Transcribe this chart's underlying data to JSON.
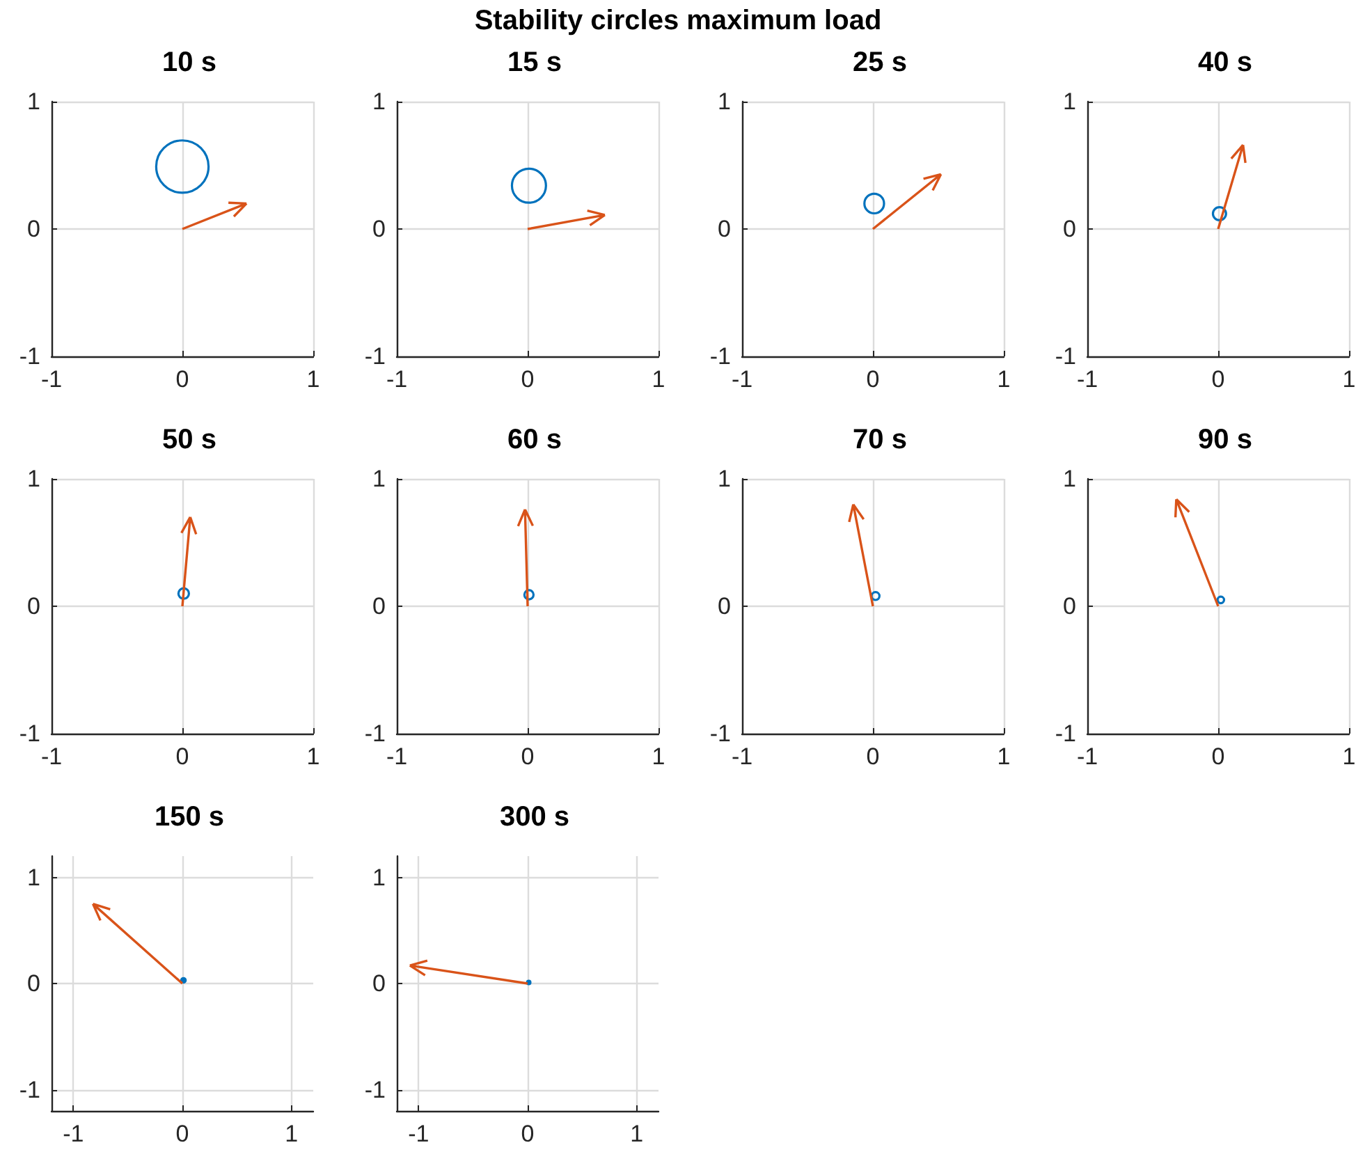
{
  "chart_data": [
    {
      "type": "other",
      "title": "Stability circles maximum load"
    },
    {
      "type": "line",
      "title": "10 s",
      "xlim": [
        -1,
        1
      ],
      "ylim": [
        -1,
        1
      ],
      "xticks": [
        -1,
        0,
        1
      ],
      "yticks": [
        -1,
        0,
        1
      ],
      "grid": true
    },
    {
      "type": "line",
      "title": "15 s",
      "xlim": [
        -1,
        1
      ],
      "ylim": [
        -1,
        1
      ],
      "xticks": [
        -1,
        0,
        1
      ],
      "yticks": [
        -1,
        0,
        1
      ],
      "grid": true
    },
    {
      "type": "line",
      "title": "25 s",
      "xlim": [
        -1,
        1
      ],
      "ylim": [
        -1,
        1
      ],
      "xticks": [
        -1,
        0,
        1
      ],
      "yticks": [
        -1,
        0,
        1
      ],
      "grid": true
    },
    {
      "type": "line",
      "title": "40 s",
      "xlim": [
        -1,
        1
      ],
      "ylim": [
        -1,
        1
      ],
      "xticks": [
        -1,
        0,
        1
      ],
      "yticks": [
        -1,
        0,
        1
      ],
      "grid": true
    },
    {
      "type": "line",
      "title": "50 s",
      "xlim": [
        -1,
        1
      ],
      "ylim": [
        -1,
        1
      ],
      "xticks": [
        -1,
        0,
        1
      ],
      "yticks": [
        -1,
        0,
        1
      ],
      "grid": true
    },
    {
      "type": "line",
      "title": "60 s",
      "xlim": [
        -1,
        1
      ],
      "ylim": [
        -1,
        1
      ],
      "xticks": [
        -1,
        0,
        1
      ],
      "yticks": [
        -1,
        0,
        1
      ],
      "grid": true
    },
    {
      "type": "line",
      "title": "70 s",
      "xlim": [
        -1,
        1
      ],
      "ylim": [
        -1,
        1
      ],
      "xticks": [
        -1,
        0,
        1
      ],
      "yticks": [
        -1,
        0,
        1
      ],
      "grid": true
    },
    {
      "type": "line",
      "title": "90 s",
      "xlim": [
        -1,
        1
      ],
      "ylim": [
        -1,
        1
      ],
      "xticks": [
        -1,
        0,
        1
      ],
      "yticks": [
        -1,
        0,
        1
      ],
      "grid": true
    },
    {
      "type": "line",
      "title": "150 s",
      "xlim": [
        -1.2,
        1.2
      ],
      "ylim": [
        -1.2,
        1.2
      ],
      "xticks": [
        -1,
        0,
        1
      ],
      "yticks": [
        -1,
        0,
        1
      ],
      "grid": true
    },
    {
      "type": "line",
      "title": "300 s",
      "xlim": [
        -1.2,
        1.2
      ],
      "ylim": [
        -1.2,
        1.2
      ],
      "xticks": [
        -1,
        0,
        1
      ],
      "yticks": [
        -1,
        0,
        1
      ],
      "grid": true
    }
  ]
}
